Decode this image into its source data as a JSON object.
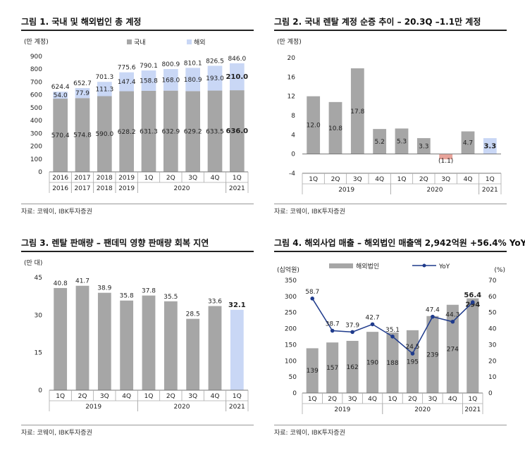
{
  "chart_data": [
    {
      "type": "bar",
      "title": "그림 1. 국내 및 해외법인 총 계정",
      "unit": "(만 계정)",
      "source": "자료: 코웨이, IBK투자증권",
      "categories": [
        "2016",
        "2017",
        "2018",
        "2019",
        "1Q",
        "2Q",
        "3Q",
        "4Q",
        "1Q"
      ],
      "year_groups": [
        {
          "label": "2016",
          "from": 0,
          "to": 0
        },
        {
          "label": "2017",
          "from": 1,
          "to": 1
        },
        {
          "label": "2018",
          "from": 2,
          "to": 2
        },
        {
          "label": "2019",
          "from": 3,
          "to": 3
        },
        {
          "label": "2020",
          "from": 4,
          "to": 7
        },
        {
          "label": "2021",
          "from": 8,
          "to": 8
        }
      ],
      "series": [
        {
          "name": "국내",
          "color": "#a6a6a6",
          "values": [
            570.4,
            574.8,
            590.0,
            628.2,
            631.3,
            632.9,
            629.2,
            633.5,
            636.0
          ]
        },
        {
          "name": "해외",
          "color": "#c9d7f5",
          "values": [
            54.0,
            77.9,
            111.3,
            147.4,
            158.8,
            168.0,
            180.9,
            193.0,
            210.0
          ]
        }
      ],
      "totals": [
        624.4,
        652.7,
        701.3,
        775.6,
        790.1,
        800.9,
        810.1,
        826.5,
        846.0
      ],
      "value_labels": {
        "domestic": [
          "570.4",
          "574.8",
          "590.0",
          "628.2",
          "631.3",
          "632.9",
          "629.2",
          "633.5",
          "636.0"
        ],
        "overseas": [
          "54.0",
          "77.9",
          "111.3",
          "147.4",
          "158.8",
          "168.0",
          "180.9",
          "193.0",
          "210.0"
        ],
        "totals": [
          "624.4",
          "652.7",
          "701.3",
          "775.6",
          "790.1",
          "800.9",
          "810.1",
          "826.5",
          "846.0"
        ]
      },
      "y_ticks": [
        "0",
        "100",
        "200",
        "300",
        "400",
        "500",
        "600",
        "700",
        "800",
        "900"
      ],
      "ylim": [
        0,
        900
      ],
      "legend": "top"
    },
    {
      "type": "bar",
      "title": "그림 2. 국내 렌탈 계정 순증 추이 – 20.3Q –1.1만 계정",
      "unit": "(만 계정)",
      "source": "자료: 코웨이, IBK투자증권",
      "categories": [
        "1Q",
        "2Q",
        "3Q",
        "4Q",
        "1Q",
        "2Q",
        "3Q",
        "4Q",
        "1Q"
      ],
      "year_groups": [
        {
          "label": "2019",
          "from": 0,
          "to": 3
        },
        {
          "label": "2020",
          "from": 4,
          "to": 7
        },
        {
          "label": "2021",
          "from": 8,
          "to": 8
        }
      ],
      "values": [
        12.0,
        10.8,
        17.8,
        5.2,
        5.3,
        3.3,
        -1.1,
        4.7,
        3.3
      ],
      "value_labels": [
        "12.0",
        "10.8",
        "17.8",
        "5.2",
        "5.3",
        "3.3",
        "(1.1)",
        "4.7",
        "3.3"
      ],
      "colors": [
        "#a6a6a6",
        "#a6a6a6",
        "#a6a6a6",
        "#a6a6a6",
        "#a6a6a6",
        "#a6a6a6",
        "#e8a39a",
        "#a6a6a6",
        "#c9d7f5"
      ],
      "y_ticks": [
        "-4",
        "0",
        "4",
        "8",
        "12",
        "16",
        "20"
      ],
      "ylim": [
        -4,
        20
      ]
    },
    {
      "type": "bar",
      "title": "그림 3. 렌탈 판매량 – 팬데믹 영향 판매량 회복 지연",
      "unit": "(만 대)",
      "source": "자료: 코웨이, IBK투자증권",
      "categories": [
        "1Q",
        "2Q",
        "3Q",
        "4Q",
        "1Q",
        "2Q",
        "3Q",
        "4Q",
        "1Q"
      ],
      "year_groups": [
        {
          "label": "2019",
          "from": 0,
          "to": 3
        },
        {
          "label": "2020",
          "from": 4,
          "to": 7
        },
        {
          "label": "2021",
          "from": 8,
          "to": 8
        }
      ],
      "values": [
        40.8,
        41.7,
        38.9,
        35.8,
        37.8,
        35.5,
        28.5,
        33.6,
        32.1
      ],
      "value_labels": [
        "40.8",
        "41.7",
        "38.9",
        "35.8",
        "37.8",
        "35.5",
        "28.5",
        "33.6",
        "32.1"
      ],
      "colors": [
        "#a6a6a6",
        "#a6a6a6",
        "#a6a6a6",
        "#a6a6a6",
        "#a6a6a6",
        "#a6a6a6",
        "#a6a6a6",
        "#a6a6a6",
        "#c9d7f5"
      ],
      "y_ticks": [
        "0",
        "15",
        "30",
        "45"
      ],
      "ylim": [
        0,
        45
      ]
    },
    {
      "type": "bar",
      "title": "그림 4. 해외사업 매출 – 해외법인 매출액 2,942억원 +56.4% YoY",
      "unit_left": "(십억원)",
      "unit_right": "(%)",
      "source": "자료: 코웨이, IBK투자증권",
      "categories": [
        "1Q",
        "2Q",
        "3Q",
        "4Q",
        "1Q",
        "2Q",
        "3Q",
        "4Q",
        "1Q"
      ],
      "year_groups": [
        {
          "label": "2019",
          "from": 0,
          "to": 3
        },
        {
          "label": "2020",
          "from": 4,
          "to": 7
        },
        {
          "label": "2021",
          "from": 8,
          "to": 8
        }
      ],
      "series": [
        {
          "name": "해외법인",
          "type": "bar",
          "color": "#a6a6a6",
          "values": [
            139,
            157,
            162,
            190,
            188,
            195,
            239,
            274,
            294
          ],
          "value_labels": [
            "139",
            "157",
            "162",
            "190",
            "188",
            "195",
            "239",
            "274",
            "294"
          ]
        },
        {
          "name": "YoY",
          "type": "line",
          "axis": "right",
          "color": "#1f3b8c",
          "values": [
            58.7,
            38.7,
            37.9,
            42.7,
            35.1,
            24.5,
            47.4,
            44.3,
            56.4
          ],
          "value_labels": [
            "58.7",
            "38.7",
            "37.9",
            "42.7",
            "35.1",
            "24.5",
            "47.4",
            "44.3",
            "56.4"
          ]
        }
      ],
      "y_ticks_left": [
        "0",
        "50",
        "100",
        "150",
        "200",
        "250",
        "300",
        "350"
      ],
      "y_ticks_right": [
        "0",
        "10",
        "20",
        "30",
        "40",
        "50",
        "60",
        "70"
      ],
      "ylim_left": [
        0,
        350
      ],
      "ylim_right": [
        0,
        70
      ],
      "legend": "top"
    }
  ]
}
